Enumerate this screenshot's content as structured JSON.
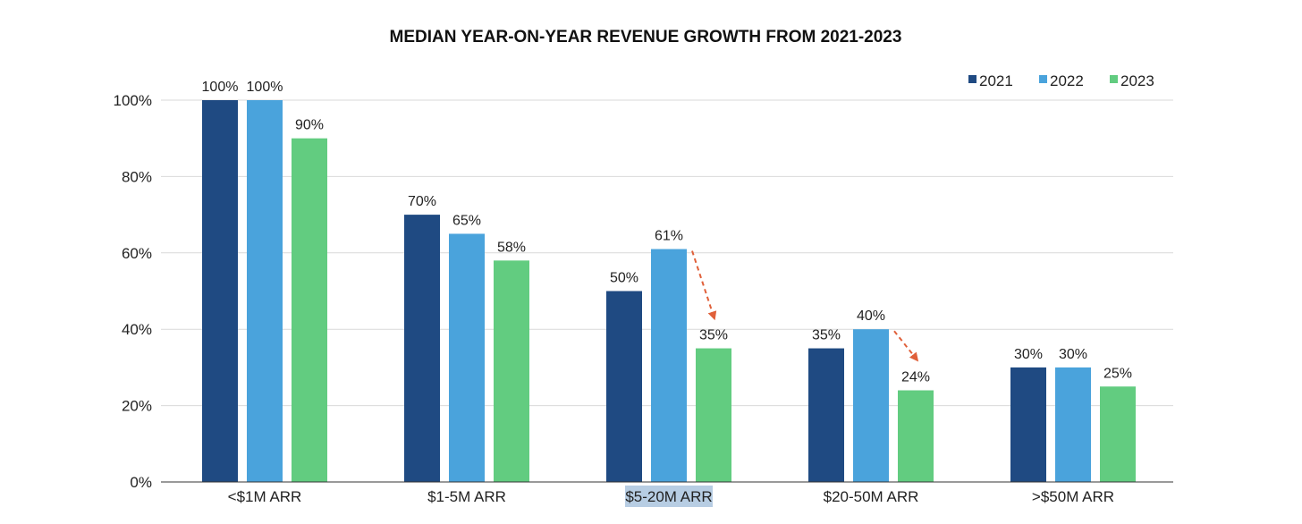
{
  "chart_data": {
    "type": "bar",
    "title": "MEDIAN YEAR-ON-YEAR REVENUE GROWTH FROM 2021-2023",
    "xlabel": "",
    "ylabel": "",
    "categories": [
      "<$1M ARR",
      "$1-5M ARR",
      "$5-20M ARR",
      "$20-50M ARR",
      ">$50M ARR"
    ],
    "series": [
      {
        "name": "2021",
        "color": "#1f4a82",
        "values": [
          100,
          70,
          50,
          35,
          30
        ]
      },
      {
        "name": "2022",
        "color": "#4aa3dc",
        "values": [
          100,
          65,
          61,
          40,
          30
        ]
      },
      {
        "name": "2023",
        "color": "#62cc80",
        "values": [
          90,
          58,
          35,
          24,
          25
        ]
      }
    ],
    "ylim": [
      0,
      100
    ],
    "yticks": [
      0,
      20,
      40,
      60,
      80,
      100
    ],
    "ytick_labels": [
      "0%",
      "20%",
      "40%",
      "60%",
      "80%",
      "100%"
    ],
    "value_suffix": "%",
    "grid": true,
    "legend": "top-right",
    "highlighted_category": "$5-20M ARR",
    "annotations": [
      {
        "type": "dashed-arrow",
        "category": "$5-20M ARR",
        "from_series": "2022",
        "to_series": "2023",
        "color": "#e0603a"
      },
      {
        "type": "dashed-arrow",
        "category": "$20-50M ARR",
        "from_series": "2022",
        "to_series": "2023",
        "color": "#e0603a"
      }
    ]
  }
}
